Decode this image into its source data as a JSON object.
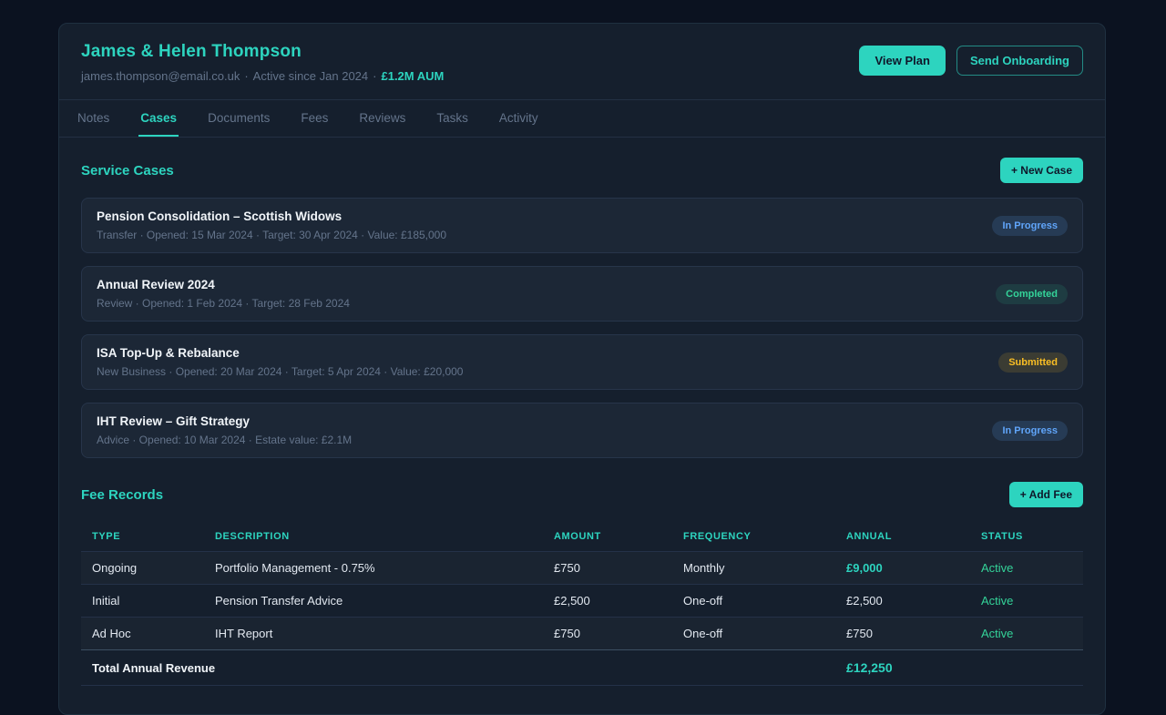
{
  "header": {
    "client_name": "James & Helen Thompson",
    "email": "james.thompson@email.co.uk",
    "sep": "·",
    "active_since": "Active since Jan 2024",
    "aum": "£1.2M AUM",
    "view_plan_label": "View Plan",
    "send_onboarding_label": "Send Onboarding"
  },
  "tabs": [
    {
      "label": "Notes",
      "active": false
    },
    {
      "label": "Cases",
      "active": true
    },
    {
      "label": "Documents",
      "active": false
    },
    {
      "label": "Fees",
      "active": false
    },
    {
      "label": "Reviews",
      "active": false
    },
    {
      "label": "Tasks",
      "active": false
    },
    {
      "label": "Activity",
      "active": false
    }
  ],
  "service_cases": {
    "title": "Service Cases",
    "new_case_label": "+ New Case",
    "cases": [
      {
        "title": "Pension Consolidation – Scottish Widows",
        "meta": "Transfer · Opened: 15 Mar 2024 · Target: 30 Apr 2024 · Value: £185,000",
        "status": "In Progress",
        "status_type": "in-progress"
      },
      {
        "title": "Annual Review 2024",
        "meta": "Review · Opened: 1 Feb 2024 · Target: 28 Feb 2024",
        "status": "Completed",
        "status_type": "completed"
      },
      {
        "title": "ISA Top-Up & Rebalance",
        "meta": "New Business · Opened: 20 Mar 2024 · Target: 5 Apr 2024 · Value: £20,000",
        "status": "Submitted",
        "status_type": "submitted"
      },
      {
        "title": "IHT Review – Gift Strategy",
        "meta": "Advice · Opened: 10 Mar 2024 · Estate value: £2.1M",
        "status": "In Progress",
        "status_type": "in-progress"
      }
    ]
  },
  "fee_records": {
    "title": "Fee Records",
    "add_fee_label": "+ Add Fee",
    "columns": [
      "TYPE",
      "DESCRIPTION",
      "AMOUNT",
      "FREQUENCY",
      "ANNUAL",
      "STATUS"
    ],
    "rows": [
      {
        "type": "Ongoing",
        "description": "Portfolio Management - 0.75%",
        "amount": "£750",
        "frequency": "Monthly",
        "annual": "£9,000",
        "annual_highlight": true,
        "status": "Active"
      },
      {
        "type": "Initial",
        "description": "Pension Transfer Advice",
        "amount": "£2,500",
        "frequency": "One-off",
        "annual": "£2,500",
        "annual_highlight": false,
        "status": "Active"
      },
      {
        "type": "Ad Hoc",
        "description": "IHT Report",
        "amount": "£750",
        "frequency": "One-off",
        "annual": "£750",
        "annual_highlight": false,
        "status": "Active"
      }
    ],
    "total_label": "Total Annual Revenue",
    "total_value": "£12,250"
  },
  "colors": {
    "accent": "#2dd4bf",
    "page_bg": "#0b1220",
    "panel_bg": "#151f2d",
    "card_bg": "#1c2736",
    "status_in_progress": "#60a5fa",
    "status_completed": "#34d399",
    "status_submitted": "#fbbf24",
    "status_active": "#34d399"
  }
}
